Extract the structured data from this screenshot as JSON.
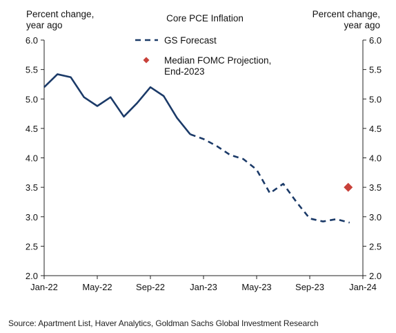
{
  "chart_data": {
    "type": "line",
    "title": "Core PCE Inflation",
    "ylabel_left": "Percent change, year ago",
    "ylabel_right": "Percent change, year ago",
    "ylim": [
      2.0,
      6.0
    ],
    "yticks": [
      "2.0",
      "2.5",
      "3.0",
      "3.5",
      "4.0",
      "4.5",
      "5.0",
      "5.5",
      "6.0"
    ],
    "yticks_right": [
      "2.0",
      "2.5",
      "3.0",
      "3.5",
      "4.0",
      "4.5",
      "5.0",
      "5.5",
      "6.0"
    ],
    "xticks": [
      "Jan-22",
      "May-22",
      "Sep-22",
      "Jan-23",
      "May-23",
      "Sep-23",
      "Jan-24"
    ],
    "xlim": [
      "Jan-22",
      "Jan-24"
    ],
    "series": [
      {
        "name": "",
        "style": "solid",
        "color": "#1b3a68",
        "points": [
          [
            "Jan-22",
            5.2
          ],
          [
            "Feb-22",
            5.42
          ],
          [
            "Mar-22",
            5.37
          ],
          [
            "Apr-22",
            5.03
          ],
          [
            "May-22",
            4.88
          ],
          [
            "Jun-22",
            5.03
          ],
          [
            "Jul-22",
            4.7
          ],
          [
            "Aug-22",
            4.93
          ],
          [
            "Sep-22",
            5.2
          ],
          [
            "Oct-22",
            5.05
          ],
          [
            "Nov-22",
            4.68
          ],
          [
            "Dec-22",
            4.4
          ]
        ]
      },
      {
        "name": "GS Forecast",
        "style": "dashed",
        "color": "#1b3a68",
        "points": [
          [
            "Dec-22",
            4.4
          ],
          [
            "Jan-23",
            4.32
          ],
          [
            "Feb-23",
            4.2
          ],
          [
            "Mar-23",
            4.05
          ],
          [
            "Apr-23",
            3.98
          ],
          [
            "May-23",
            3.8
          ],
          [
            "Jun-23",
            3.4
          ],
          [
            "Jul-23",
            3.56
          ],
          [
            "Aug-23",
            3.25
          ],
          [
            "Sep-23",
            2.97
          ],
          [
            "Oct-23",
            2.92
          ],
          [
            "Nov-23",
            2.96
          ],
          [
            "Dec-23",
            2.9
          ]
        ]
      }
    ],
    "markers": [
      {
        "name": "Median FOMC Projection, End-2023",
        "x": "Dec-23",
        "y": 3.5,
        "color": "#c8413a",
        "shape": "diamond"
      }
    ],
    "legend": {
      "placement": "top-center",
      "entries": [
        {
          "label": "GS Forecast",
          "kind": "dashed-line"
        },
        {
          "label_lines": [
            "Median FOMC Projection,",
            "End-2023"
          ],
          "kind": "diamond"
        }
      ]
    },
    "grid": false
  },
  "source": "Source: Apartment List, Haver Analytics, Goldman Sachs Global Investment Research"
}
